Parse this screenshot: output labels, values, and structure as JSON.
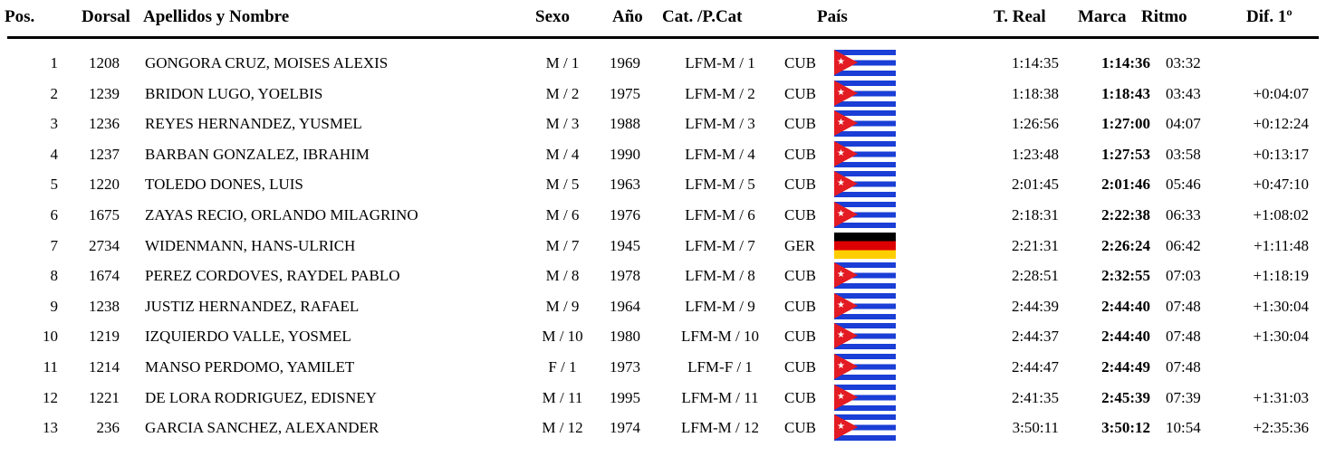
{
  "header": {
    "pos": "Pos.",
    "dorsal": "Dorsal",
    "name": "Apellidos y Nombre",
    "sexo": "Sexo",
    "anio": "Año",
    "cat": "Cat. /P.Cat",
    "pais": "País",
    "treal": "T. Real",
    "marca": "Marca",
    "ritmo": "Ritmo",
    "dif": "Dif. 1º"
  },
  "colors": {
    "cuba_blue": "#1a3ed6",
    "cuba_red": "#e31b23",
    "ger_black": "#000000",
    "ger_red": "#dd0000",
    "ger_gold": "#ffce00"
  },
  "rows": [
    {
      "pos": "1",
      "dorsal": "1208",
      "name": "GONGORA CRUZ, MOISES ALEXIS",
      "sexo": "M / 1",
      "anio": "1969",
      "cat": "LFM-M / 1",
      "pais": "CUB",
      "flag": "cuba-flag-icon",
      "treal": "1:14:35",
      "marca": "1:14:36",
      "ritmo": "03:32",
      "dif": ""
    },
    {
      "pos": "2",
      "dorsal": "1239",
      "name": "BRIDON LUGO, YOELBIS",
      "sexo": "M / 2",
      "anio": "1975",
      "cat": "LFM-M / 2",
      "pais": "CUB",
      "flag": "cuba-flag-icon",
      "treal": "1:18:38",
      "marca": "1:18:43",
      "ritmo": "03:43",
      "dif": "+0:04:07"
    },
    {
      "pos": "3",
      "dorsal": "1236",
      "name": "REYES HERNANDEZ, YUSMEL",
      "sexo": "M / 3",
      "anio": "1988",
      "cat": "LFM-M / 3",
      "pais": "CUB",
      "flag": "cuba-flag-icon",
      "treal": "1:26:56",
      "marca": "1:27:00",
      "ritmo": "04:07",
      "dif": "+0:12:24"
    },
    {
      "pos": "4",
      "dorsal": "1237",
      "name": "BARBAN GONZALEZ, IBRAHIM",
      "sexo": "M / 4",
      "anio": "1990",
      "cat": "LFM-M / 4",
      "pais": "CUB",
      "flag": "cuba-flag-icon",
      "treal": "1:23:48",
      "marca": "1:27:53",
      "ritmo": "03:58",
      "dif": "+0:13:17"
    },
    {
      "pos": "5",
      "dorsal": "1220",
      "name": "TOLEDO DONES, LUIS",
      "sexo": "M / 5",
      "anio": "1963",
      "cat": "LFM-M / 5",
      "pais": "CUB",
      "flag": "cuba-flag-icon",
      "treal": "2:01:45",
      "marca": "2:01:46",
      "ritmo": "05:46",
      "dif": "+0:47:10"
    },
    {
      "pos": "6",
      "dorsal": "1675",
      "name": "ZAYAS RECIO, ORLANDO MILAGRINO",
      "sexo": "M / 6",
      "anio": "1976",
      "cat": "LFM-M / 6",
      "pais": "CUB",
      "flag": "cuba-flag-icon",
      "treal": "2:18:31",
      "marca": "2:22:38",
      "ritmo": "06:33",
      "dif": "+1:08:02"
    },
    {
      "pos": "7",
      "dorsal": "2734",
      "name": "WIDENMANN, HANS-ULRICH",
      "sexo": "M / 7",
      "anio": "1945",
      "cat": "LFM-M / 7",
      "pais": "GER",
      "flag": "germany-flag-icon",
      "treal": "2:21:31",
      "marca": "2:26:24",
      "ritmo": "06:42",
      "dif": "+1:11:48"
    },
    {
      "pos": "8",
      "dorsal": "1674",
      "name": "PEREZ CORDOVES, RAYDEL PABLO",
      "sexo": "M / 8",
      "anio": "1978",
      "cat": "LFM-M / 8",
      "pais": "CUB",
      "flag": "cuba-flag-icon",
      "treal": "2:28:51",
      "marca": "2:32:55",
      "ritmo": "07:03",
      "dif": "+1:18:19"
    },
    {
      "pos": "9",
      "dorsal": "1238",
      "name": "JUSTIZ HERNANDEZ, RAFAEL",
      "sexo": "M / 9",
      "anio": "1964",
      "cat": "LFM-M / 9",
      "pais": "CUB",
      "flag": "cuba-flag-icon",
      "treal": "2:44:39",
      "marca": "2:44:40",
      "ritmo": "07:48",
      "dif": "+1:30:04"
    },
    {
      "pos": "10",
      "dorsal": "1219",
      "name": "IZQUIERDO VALLE, YOSMEL",
      "sexo": "M / 10",
      "anio": "1980",
      "cat": "LFM-M / 10",
      "pais": "CUB",
      "flag": "cuba-flag-icon",
      "treal": "2:44:37",
      "marca": "2:44:40",
      "ritmo": "07:48",
      "dif": "+1:30:04"
    },
    {
      "pos": "11",
      "dorsal": "1214",
      "name": "MANSO PERDOMO, YAMILET",
      "sexo": "F / 1",
      "anio": "1973",
      "cat": "LFM-F / 1",
      "pais": "CUB",
      "flag": "cuba-flag-icon",
      "treal": "2:44:47",
      "marca": "2:44:49",
      "ritmo": "07:48",
      "dif": ""
    },
    {
      "pos": "12",
      "dorsal": "1221",
      "name": "DE LORA RODRIGUEZ, EDISNEY",
      "sexo": "M / 11",
      "anio": "1995",
      "cat": "LFM-M / 11",
      "pais": "CUB",
      "flag": "cuba-flag-icon",
      "treal": "2:41:35",
      "marca": "2:45:39",
      "ritmo": "07:39",
      "dif": "+1:31:03"
    },
    {
      "pos": "13",
      "dorsal": "236",
      "name": "GARCIA SANCHEZ, ALEXANDER",
      "sexo": "M / 12",
      "anio": "1974",
      "cat": "LFM-M / 12",
      "pais": "CUB",
      "flag": "cuba-flag-icon",
      "treal": "3:50:11",
      "marca": "3:50:12",
      "ritmo": "10:54",
      "dif": "+2:35:36"
    }
  ]
}
